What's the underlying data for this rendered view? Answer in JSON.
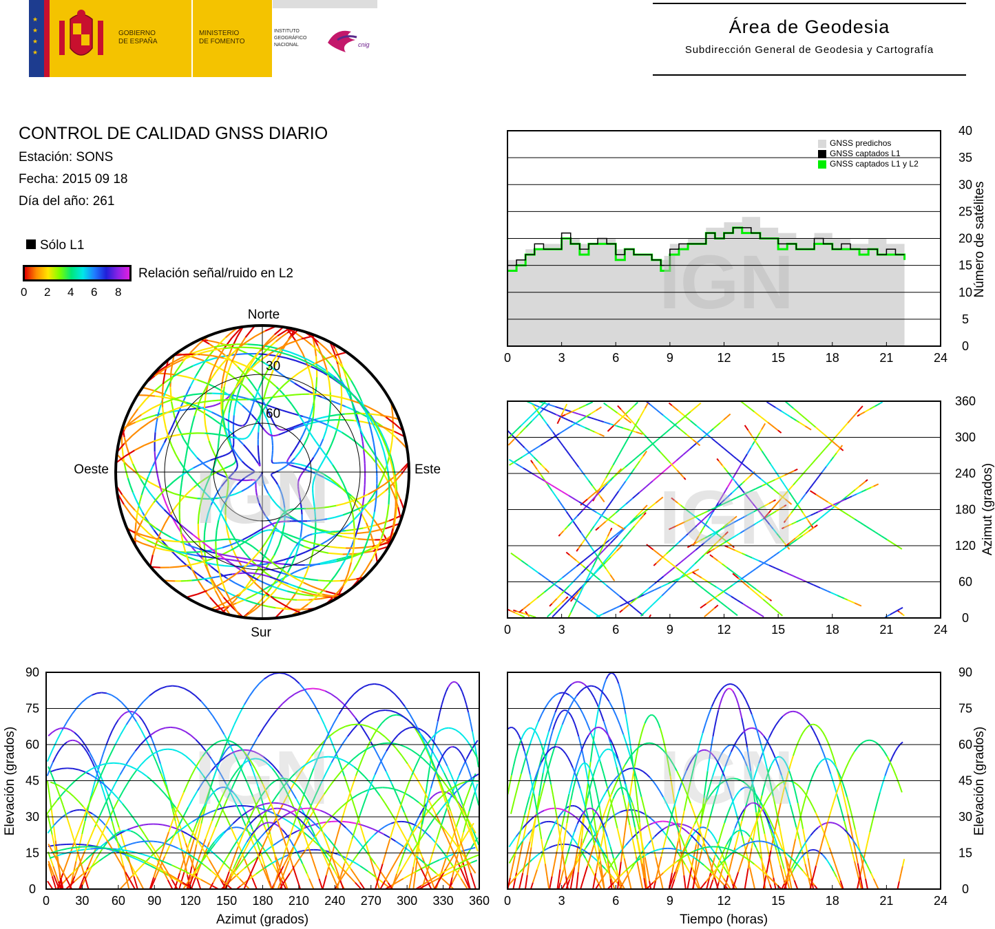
{
  "header": {
    "gov_line1": "GOBIERNO",
    "gov_line2": "DE ESPAÑA",
    "ministry_line1": "MINISTERIO",
    "ministry_line2": "DE FOMENTO",
    "institute_line1": "INSTITUTO",
    "institute_line2": "GEOGRÁFICO",
    "institute_line3": "NACIONAL",
    "cnig": "cnig",
    "area_title": "Área de Geodesia",
    "area_subtitle": "Subdirección General de Geodesia y Cartografía",
    "colors": {
      "red": "#c8102e",
      "yellow": "#f4c300",
      "blue": "#1d3c8f"
    }
  },
  "info": {
    "title": "CONTROL DE CALIDAD GNSS DIARIO",
    "station": "Estación: SONS",
    "date": "Fecha: 2015 09 18",
    "doy": "Día del año: 261"
  },
  "legend": {
    "l1_only": "Sólo L1",
    "snr_label": "Relación señal/ruido en L2",
    "snr_ticks": [
      "0",
      "2",
      "4",
      "6",
      "8"
    ]
  },
  "watermark": "IGN",
  "chart_data": [
    {
      "id": "satellite_count",
      "type": "area",
      "x_ticks": [
        "0",
        "3",
        "6",
        "9",
        "12",
        "15",
        "18",
        "21",
        "24"
      ],
      "y_ticks": [
        "0",
        "5",
        "10",
        "15",
        "20",
        "25",
        "30",
        "35",
        "40"
      ],
      "xlim": [
        0,
        24
      ],
      "ylim": [
        0,
        40
      ],
      "ylabel": "Número de satélites",
      "y_axis_side": "right",
      "grid": "horizontal",
      "legend_position": "top-right",
      "series": [
        {
          "name": "GNSS predichos",
          "color": "#d9d9d9",
          "x": [
            0,
            1,
            2,
            3,
            4,
            5,
            6,
            7,
            8,
            9,
            10,
            11,
            12,
            13,
            14,
            15,
            16,
            17,
            18,
            19,
            20,
            21,
            22
          ],
          "values": [
            16,
            18,
            19,
            20,
            19,
            20,
            18,
            17,
            16,
            19,
            20,
            22,
            23,
            24,
            22,
            21,
            20,
            21,
            20,
            19,
            20,
            19,
            18
          ]
        },
        {
          "name": "GNSS captados L1",
          "color": "#000000",
          "x": [
            0,
            0.5,
            1,
            1.5,
            2,
            2.5,
            3,
            3.5,
            4,
            4.5,
            5,
            5.5,
            6,
            6.5,
            7,
            7.5,
            8,
            8.5,
            9,
            9.5,
            10,
            10.5,
            11,
            11.5,
            12,
            12.5,
            13,
            13.5,
            14,
            14.5,
            15,
            15.5,
            16,
            16.5,
            17,
            17.5,
            18,
            18.5,
            19,
            19.5,
            20,
            20.5,
            21,
            21.5,
            22
          ],
          "values": [
            15,
            16,
            17,
            19,
            18,
            18,
            21,
            19,
            18,
            19,
            20,
            19,
            17,
            18,
            17,
            17,
            16,
            15,
            18,
            19,
            19,
            19,
            21,
            20,
            21,
            22,
            22,
            21,
            20,
            20,
            19,
            19,
            18,
            18,
            20,
            19,
            18,
            19,
            18,
            18,
            18,
            17,
            18,
            17,
            17
          ]
        },
        {
          "name": "GNSS captados L1 y L2",
          "color": "#00ee00",
          "x": [
            0,
            0.5,
            1,
            1.5,
            2,
            2.5,
            3,
            3.5,
            4,
            4.5,
            5,
            5.5,
            6,
            6.5,
            7,
            7.5,
            8,
            8.5,
            9,
            9.5,
            10,
            10.5,
            11,
            11.5,
            12,
            12.5,
            13,
            13.5,
            14,
            14.5,
            15,
            15.5,
            16,
            16.5,
            17,
            17.5,
            18,
            18.5,
            19,
            19.5,
            20,
            20.5,
            21,
            21.5,
            22
          ],
          "values": [
            14,
            15,
            17,
            18,
            18,
            18,
            20,
            19,
            17,
            19,
            19,
            19,
            16,
            18,
            17,
            17,
            16,
            14,
            17,
            18,
            19,
            19,
            21,
            20,
            21,
            22,
            21,
            21,
            20,
            20,
            18,
            19,
            18,
            18,
            19,
            19,
            18,
            18,
            18,
            17,
            18,
            17,
            17,
            17,
            16
          ]
        }
      ]
    },
    {
      "id": "polar_skyplot",
      "type": "scatter",
      "direction_labels": {
        "north": "Norte",
        "south": "Sur",
        "west": "Oeste",
        "east": "Este"
      },
      "ring_labels": [
        "30",
        "60"
      ],
      "color_scale": "snr_l2"
    },
    {
      "id": "azimuth_vs_time",
      "type": "scatter",
      "x_ticks": [
        "0",
        "3",
        "6",
        "9",
        "12",
        "15",
        "18",
        "21",
        "24"
      ],
      "y_ticks": [
        "0",
        "60",
        "120",
        "180",
        "240",
        "300",
        "360"
      ],
      "xlim": [
        0,
        24
      ],
      "ylim": [
        0,
        360
      ],
      "ylabel": "Azimut (grados)",
      "y_axis_side": "right",
      "grid": "horizontal"
    },
    {
      "id": "elevation_vs_azimuth",
      "type": "scatter",
      "x_ticks": [
        "0",
        "30",
        "60",
        "90",
        "120",
        "150",
        "180",
        "210",
        "240",
        "270",
        "300",
        "330",
        "360"
      ],
      "y_ticks": [
        "0",
        "15",
        "30",
        "45",
        "60",
        "75",
        "90"
      ],
      "xlim": [
        0,
        360
      ],
      "ylim": [
        0,
        90
      ],
      "xlabel": "Azimut (grados)",
      "ylabel": "Elevación (grados)",
      "grid": "horizontal"
    },
    {
      "id": "elevation_vs_time",
      "type": "scatter",
      "x_ticks": [
        "0",
        "3",
        "6",
        "9",
        "12",
        "15",
        "18",
        "21",
        "24"
      ],
      "y_ticks": [
        "0",
        "15",
        "30",
        "45",
        "60",
        "75",
        "90"
      ],
      "xlim": [
        0,
        24
      ],
      "ylim": [
        0,
        90
      ],
      "xlabel": "Tiempo (horas)",
      "ylabel": "Elevación (grados)",
      "y_axis_side": "right",
      "grid": "horizontal"
    }
  ]
}
